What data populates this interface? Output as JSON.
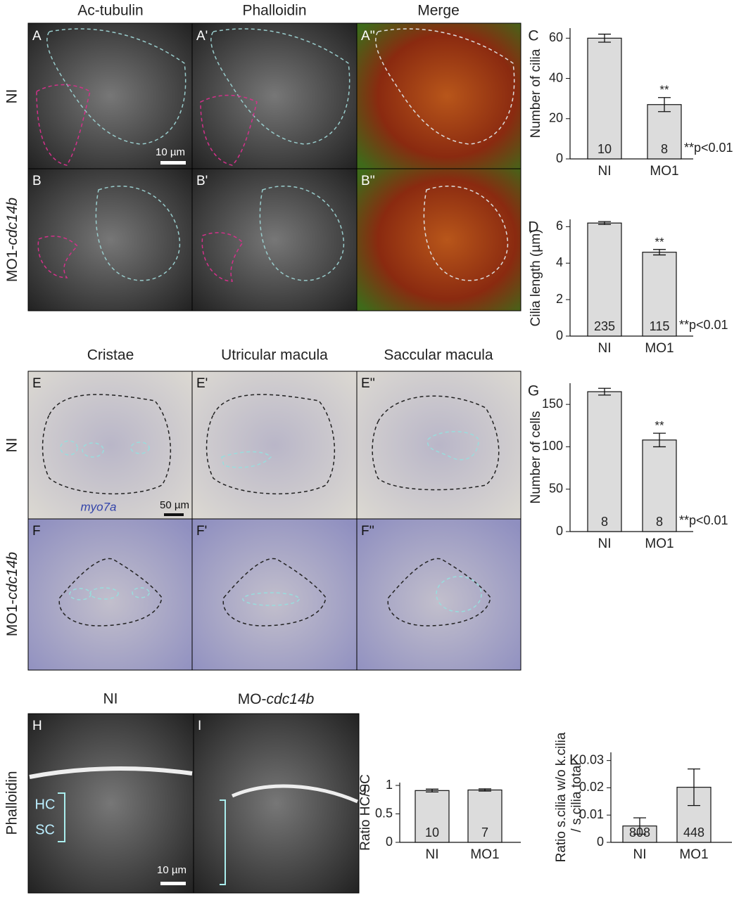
{
  "figure": {
    "col_headers_top": [
      "Ac-tubulin",
      "Phalloidin",
      "Merge"
    ],
    "col_headers_mid": [
      "Cristae",
      "Utricular macula",
      "Saccular macula"
    ],
    "col_headers_bottom": {
      "ni": "NI",
      "mo_prefix": "MO-",
      "mo_gene": "cdc14b"
    },
    "row_labels": {
      "ni": "NI",
      "mo_prefix": "MO1-",
      "mo_gene": "cdc14b",
      "phalloidin": "Phalloidin"
    },
    "panel_letters": {
      "a": [
        "A",
        "A'",
        "A''"
      ],
      "b": [
        "B",
        "B'",
        "B''"
      ],
      "e": [
        "E",
        "E'",
        "E''"
      ],
      "f": [
        "F",
        "F'",
        "F''"
      ],
      "h": "H",
      "i": "I"
    },
    "scale_bars": {
      "a": "10 µm",
      "e": "50 µm",
      "h": "10 µm"
    },
    "stain": "myo7a",
    "hc": "HC",
    "sc": "SC"
  },
  "chart_data": [
    {
      "type": "bar",
      "label": "C",
      "ylabel": "Number of cilia",
      "categories": [
        "NI",
        "MO1"
      ],
      "values": [
        60,
        27
      ],
      "errors": [
        2,
        3.5
      ],
      "n": [
        10,
        8
      ],
      "value_annotations": [
        null,
        "**"
      ],
      "note": "**p<0.01",
      "color": "#dcdcdc",
      "ylim": [
        0,
        65
      ],
      "yticks": [
        0,
        20,
        40,
        60
      ]
    },
    {
      "type": "bar",
      "label": "D",
      "ylabel": "Cilia length (µm)",
      "categories": [
        "NI",
        "MO1"
      ],
      "values": [
        6.2,
        4.6
      ],
      "errors": [
        0.08,
        0.15
      ],
      "n": [
        235,
        115
      ],
      "value_annotations": [
        null,
        "**"
      ],
      "note": "**p<0.01",
      "color": "#dcdcdc",
      "ylim": [
        0,
        6.4
      ],
      "yticks": [
        0,
        2,
        4,
        6
      ]
    },
    {
      "type": "bar",
      "label": "G",
      "ylabel": "Number of cells",
      "categories": [
        "NI",
        "MO1"
      ],
      "values": [
        165,
        108
      ],
      "errors": [
        4,
        8
      ],
      "n": [
        8,
        8
      ],
      "value_annotations": [
        null,
        "**"
      ],
      "note": "**p<0.01",
      "color": "#dcdcdc",
      "ylim": [
        0,
        175
      ],
      "yticks": [
        0,
        50,
        100,
        150
      ]
    },
    {
      "type": "bar",
      "label": "J",
      "ylabel": "Ratio HC/SC",
      "categories": [
        "NI",
        "MO1"
      ],
      "values": [
        0.91,
        0.92
      ],
      "errors": [
        0.025,
        0.02
      ],
      "n": [
        10,
        7
      ],
      "color": "#dcdcdc",
      "ylim": [
        0,
        1.05
      ],
      "yticks": [
        0,
        0.5,
        1
      ]
    },
    {
      "type": "bar",
      "label": "K",
      "ylabel": [
        "Ratio s.cilia w/o k.cilia",
        "/ s.cilia total"
      ],
      "categories": [
        "NI",
        "MO1"
      ],
      "values": [
        0.006,
        0.0202
      ],
      "errors": [
        0.003,
        0.0067
      ],
      "n": [
        808,
        448
      ],
      "color": "#dcdcdc",
      "ylim": [
        0,
        0.033
      ],
      "yticks": [
        0,
        0.01,
        0.02,
        0.03
      ]
    }
  ]
}
